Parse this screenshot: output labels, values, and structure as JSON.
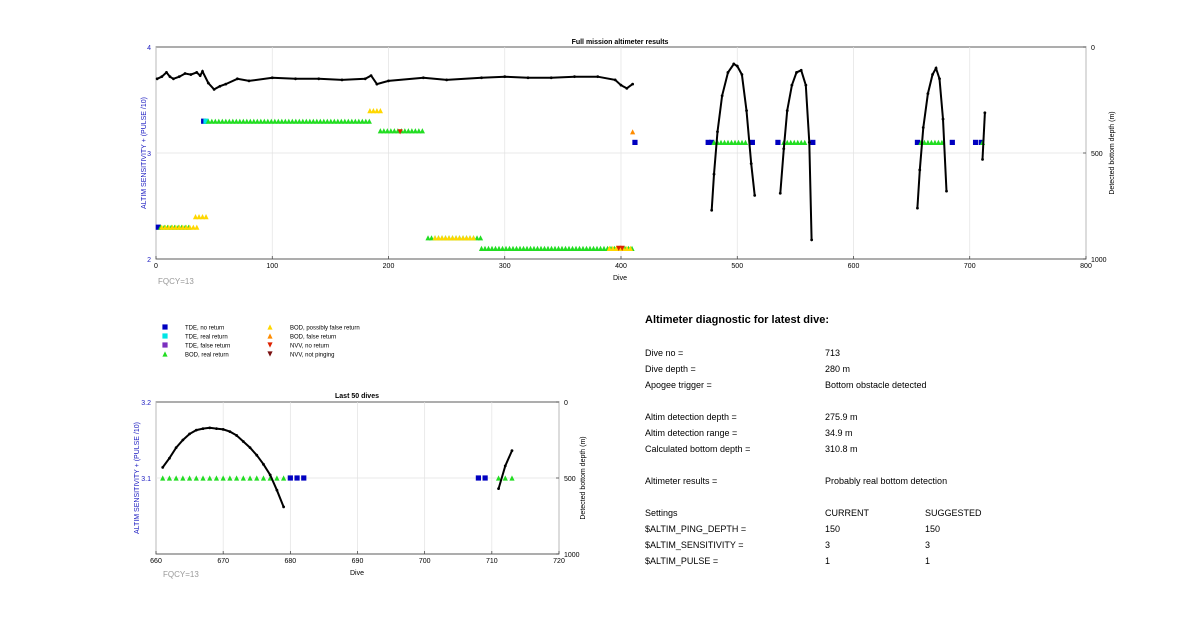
{
  "top_plot": {
    "title": "Full mission altimeter results",
    "xlabel": "Dive",
    "ylabel_left": "ALTIM SENSITIVITY + (PULSE /10)",
    "ylabel_right": "Detected bottom depth (m)",
    "xticks": [
      "0",
      "100",
      "200",
      "300",
      "400",
      "500",
      "600",
      "700",
      "800"
    ],
    "yticks_left": [
      "2",
      "3",
      "4"
    ],
    "yticks_right": [
      "0",
      "500",
      "1000"
    ],
    "fqcy": "FQCY=13"
  },
  "bottom_plot": {
    "title": "Last 50 dives",
    "xlabel": "Dive",
    "ylabel_left": "ALTIM SENSITIVITY + (PULSE /10)",
    "ylabel_right": "Detected bottom depth (m)",
    "xticks": [
      "660",
      "670",
      "680",
      "690",
      "700",
      "710",
      "720"
    ],
    "yticks_left": [
      "3.1",
      "3.2"
    ],
    "yticks_right": [
      "0",
      "500",
      "1000"
    ],
    "fqcy": "FQCY=13"
  },
  "legend": [
    {
      "label": "TDE, no return",
      "marker": "square",
      "color": "#0000c0"
    },
    {
      "label": "TDE, real return",
      "marker": "square",
      "color": "#00e5e5"
    },
    {
      "label": "TDE, false return",
      "marker": "square",
      "color": "#7b2fbf"
    },
    {
      "label": "BOD, real return",
      "marker": "triangle-up",
      "color": "#22dd22"
    },
    {
      "label": "BOD, possibly false return",
      "marker": "triangle-up",
      "color": "#ffd700"
    },
    {
      "label": "BOD, false return",
      "marker": "triangle-up",
      "color": "#ff8c00"
    },
    {
      "label": "NVV, no return",
      "marker": "triangle-down",
      "color": "#dd2200"
    },
    {
      "label": "NVV, not pinging",
      "marker": "triangle-down",
      "color": "#7a1010"
    }
  ],
  "diagnostic": {
    "title": "Altimeter diagnostic for latest dive:",
    "rows": [
      {
        "label": "Dive no =",
        "value": "713"
      },
      {
        "label": "Dive depth =",
        "value": "280 m"
      },
      {
        "label": "Apogee trigger =",
        "value": "Bottom obstacle detected"
      },
      {
        "label": "Altim detection depth =",
        "value": "275.9 m"
      },
      {
        "label": "Altim detection range =",
        "value": "34.9 m"
      },
      {
        "label": "Calculated bottom depth =",
        "value": "310.8 m"
      },
      {
        "label": "Altimeter results =",
        "value": "Probably real bottom detection"
      }
    ],
    "settings_header": {
      "label": "Settings",
      "current": "CURRENT",
      "suggested": "SUGGESTED"
    },
    "settings": [
      {
        "name": "$ALTIM_PING_DEPTH =",
        "current": "150",
        "suggested": "150"
      },
      {
        "name": "$ALTIM_SENSITIVITY =",
        "current": "3",
        "suggested": "3"
      },
      {
        "name": "$ALTIM_PULSE =",
        "current": "1",
        "suggested": "1"
      }
    ]
  },
  "chart_data": [
    {
      "type": "scatter",
      "title": "Full mission altimeter results",
      "xlabel": "Dive",
      "ylabel": "ALTIM SENSITIVITY + (PULSE /10)",
      "y2label": "Detected bottom depth (m)",
      "xlim": [
        0,
        800
      ],
      "ylim": [
        2,
        4
      ],
      "y2lim": [
        1000,
        0
      ],
      "grid": true,
      "series": [
        {
          "name": "TDE, no return",
          "x": [
            2,
            41,
            412,
            475,
            478,
            513,
            535,
            565,
            655,
            685,
            705,
            710
          ],
          "y": [
            2.3,
            3.3,
            3.1,
            3.1,
            3.1,
            3.1,
            3.1,
            3.1,
            3.1,
            3.1,
            3.1,
            3.1
          ]
        },
        {
          "name": "TDE, real return",
          "x": [
            43
          ],
          "y": [
            3.3
          ]
        },
        {
          "name": "BOD, real return",
          "segments": [
            [
              4,
              30,
              2.3
            ],
            [
              45,
              185,
              3.3
            ],
            [
              193,
              232,
              3.21
            ],
            [
              234,
              280,
              2.2
            ],
            [
              280,
              410,
              2.1
            ],
            [
              480,
              510,
              3.1
            ],
            [
              540,
              560,
              3.1
            ],
            [
              658,
              678,
              3.1
            ],
            [
              711,
              713,
              3.1
            ]
          ]
        },
        {
          "name": "BOD, possibly false return",
          "segments": [
            [
              5,
              38,
              2.3
            ],
            [
              34,
              44,
              2.4
            ],
            [
              184,
              196,
              3.4
            ],
            [
              240,
              275,
              2.2
            ],
            [
              390,
              410,
              2.1
            ]
          ]
        },
        {
          "name": "BOD, false return",
          "x": [
            410
          ],
          "y": [
            3.2
          ]
        },
        {
          "name": "NVV, no return",
          "x": [
            210,
            398,
            401
          ],
          "y": [
            3.2,
            2.1,
            2.1
          ]
        },
        {
          "name": "Bottom depth (m)",
          "axis": "right",
          "segments": [
            {
              "x": [
                1,
                5,
                9,
                12,
                15,
                20,
                25,
                30,
                35,
                38,
                40,
                45,
                50,
                55,
                60,
                70,
                80,
                100,
                120,
                140,
                160,
                180,
                185,
                190,
                200,
                230,
                250,
                280,
                300,
                320,
                340,
                360,
                380,
                395,
                400,
                405,
                410
              ],
              "y": [
                150,
                140,
                120,
                140,
                150,
                140,
                125,
                130,
                120,
                135,
                115,
                170,
                200,
                185,
                175,
                150,
                160,
                145,
                150,
                150,
                155,
                150,
                135,
                175,
                160,
                145,
                155,
                145,
                140,
                145,
                145,
                140,
                140,
                155,
                180,
                195,
                175
              ]
            },
            {
              "x": [
                478,
                480,
                483,
                487,
                492,
                497,
                500,
                504,
                508,
                512,
                515
              ],
              "y": [
                770,
                600,
                400,
                230,
                120,
                80,
                90,
                130,
                300,
                550,
                700
              ]
            },
            {
              "x": [
                537,
                540,
                543,
                547,
                551,
                555,
                559,
                562,
                564
              ],
              "y": [
                690,
                480,
                300,
                180,
                120,
                110,
                180,
                450,
                910
              ]
            },
            {
              "x": [
                655,
                657,
                660,
                664,
                668,
                671,
                674,
                677,
                680
              ],
              "y": [
                760,
                580,
                380,
                220,
                130,
                100,
                150,
                340,
                680
              ]
            },
            {
              "x": [
                711,
                713
              ],
              "y": [
                530,
                310
              ]
            }
          ]
        }
      ]
    },
    {
      "type": "scatter",
      "title": "Last 50 dives",
      "xlabel": "Dive",
      "ylabel": "ALTIM SENSITIVITY + (PULSE /10)",
      "y2label": "Detected bottom depth (m)",
      "xlim": [
        660,
        720
      ],
      "ylim": [
        3,
        3.2
      ],
      "y2lim": [
        1000,
        0
      ],
      "grid": true,
      "series": [
        {
          "name": "TDE, no return",
          "x": [
            680,
            681,
            682,
            708,
            709
          ],
          "y": [
            3.1,
            3.1,
            3.1,
            3.1,
            3.1
          ]
        },
        {
          "name": "BOD, real return",
          "x": [
            661,
            662,
            663,
            664,
            665,
            666,
            667,
            668,
            669,
            670,
            671,
            672,
            673,
            674,
            675,
            676,
            677,
            678,
            679,
            711,
            712,
            713
          ],
          "y": [
            3.1,
            3.1,
            3.1,
            3.1,
            3.1,
            3.1,
            3.1,
            3.1,
            3.1,
            3.1,
            3.1,
            3.1,
            3.1,
            3.1,
            3.1,
            3.1,
            3.1,
            3.1,
            3.1,
            3.1,
            3.1,
            3.1
          ]
        },
        {
          "name": "Bottom depth (m)",
          "axis": "right",
          "segments": [
            {
              "x": [
                661,
                662,
                663,
                664,
                665,
                666,
                667,
                668,
                669,
                670,
                671,
                672,
                673,
                674,
                675,
                676,
                677,
                678,
                679
              ],
              "y": [
                430,
                370,
                300,
                250,
                210,
                185,
                175,
                170,
                175,
                180,
                195,
                220,
                260,
                300,
                350,
                410,
                480,
                580,
                690
              ]
            },
            {
              "x": [
                711,
                712,
                713
              ],
              "y": [
                570,
                420,
                320
              ]
            }
          ]
        }
      ]
    }
  ]
}
